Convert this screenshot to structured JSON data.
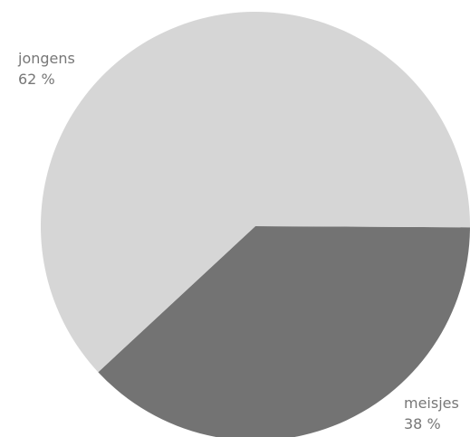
{
  "chart_data": {
    "type": "pie",
    "slices": [
      {
        "label": "jongens",
        "value": 62,
        "value_label": "62 %",
        "color": "#d6d6d6"
      },
      {
        "label": "meisjes",
        "value": 38,
        "value_label": "38 %",
        "color": "#737373"
      }
    ],
    "label_color": "#777777"
  }
}
